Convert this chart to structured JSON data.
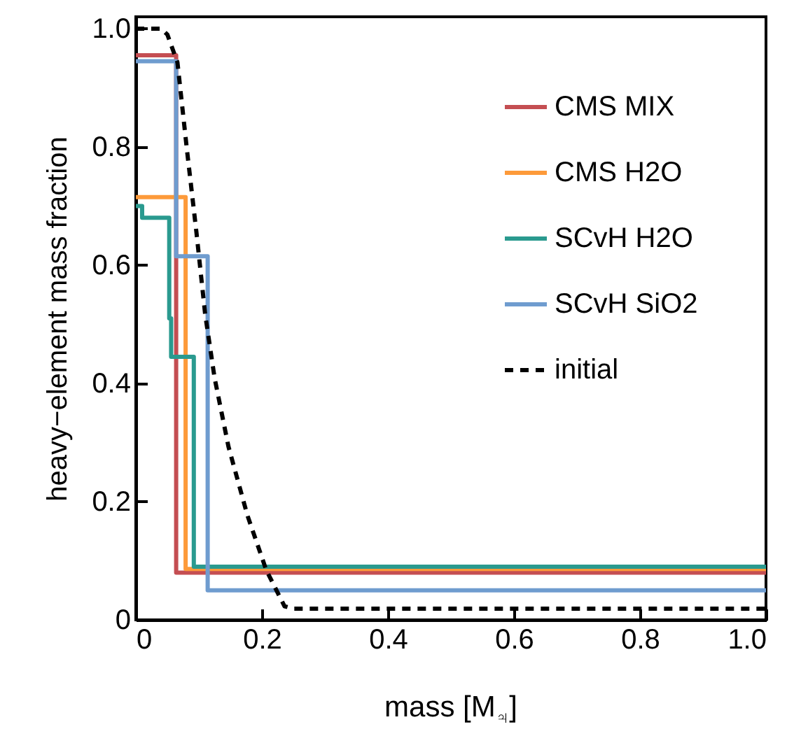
{
  "chart_data": {
    "type": "step",
    "xlabel": "mass [M$_{♃}$]",
    "ylabel": "heavy−element mass fraction",
    "xlim": [
      0,
      1
    ],
    "ylim": [
      0,
      1.02
    ],
    "xticks": [
      0,
      0.2,
      0.4,
      0.6,
      0.8,
      {
        "value": 1,
        "label": "1.0"
      }
    ],
    "yticks": [
      0,
      0.2,
      0.4,
      0.6,
      0.8,
      {
        "value": 1,
        "label": "1.0"
      }
    ],
    "legend": "top right",
    "series": [
      {
        "name": "CMS MIX",
        "color": "#c44e52",
        "line_style": "solid",
        "x": [
          0,
          0.064,
          1
        ],
        "values": [
          0.955,
          0.08,
          0.08
        ]
      },
      {
        "name": "CMS H2O",
        "color": "#fd9a3a",
        "line_style": "solid",
        "x": [
          0,
          0.079,
          1
        ],
        "values": [
          0.715,
          0.086,
          0.086
        ]
      },
      {
        "name": "SCvH H2O",
        "color": "#2a9a8f",
        "line_style": "solid",
        "x": [
          0,
          0.01,
          0.053,
          0.056,
          0.092,
          1
        ],
        "values": [
          0.7,
          0.68,
          0.51,
          0.445,
          0.09,
          0.09
        ]
      },
      {
        "name": "SCvH SiO2",
        "color": "#6f9ccf",
        "line_style": "solid",
        "x": [
          0,
          0.064,
          0.114,
          1
        ],
        "values": [
          0.945,
          0.615,
          0.05,
          0.05
        ]
      },
      {
        "name": "initial",
        "type": "line",
        "color": "#000000",
        "line_style": "dashed",
        "x": [
          0,
          0.04,
          0.05,
          0.066,
          0.081,
          0.096,
          0.11,
          0.125,
          0.147,
          0.177,
          0.207,
          0.236,
          0.25,
          1
        ],
        "values": [
          1.0,
          1.0,
          0.99,
          0.943,
          0.796,
          0.657,
          0.517,
          0.409,
          0.293,
          0.177,
          0.084,
          0.023,
          0.019,
          0.019
        ]
      }
    ]
  }
}
